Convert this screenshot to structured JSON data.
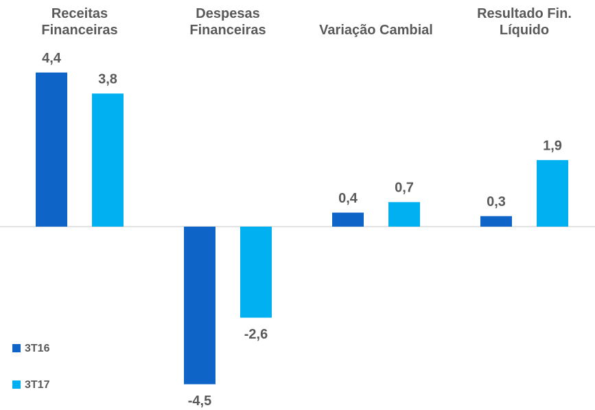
{
  "chart_data": {
    "type": "bar",
    "categories": [
      "Receitas\nFinanceiras",
      "Despesas\nFinanceiras",
      "Variação Cambial",
      "Resultado Fin.\nLíquido"
    ],
    "series": [
      {
        "name": "3T16",
        "color": "#0f64c8",
        "values": [
          4.4,
          -4.5,
          0.4,
          0.3
        ],
        "value_labels": [
          "4,4",
          "-4,5",
          "0,4",
          "0,3"
        ]
      },
      {
        "name": "3T17",
        "color": "#00b0f0",
        "values": [
          3.8,
          -2.6,
          0.7,
          1.9
        ],
        "value_labels": [
          "3,8",
          "-2,6",
          "0,7",
          "1,9"
        ]
      }
    ],
    "legend": "bottom-left"
  }
}
